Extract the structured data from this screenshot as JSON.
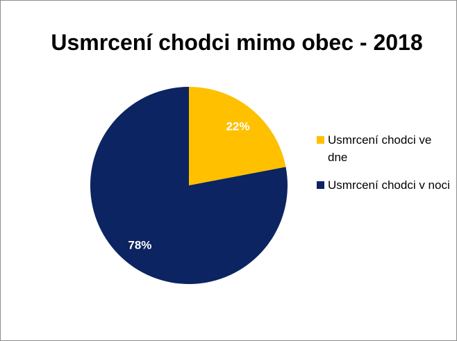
{
  "chart_data": {
    "type": "pie",
    "title": "Usmrcení chodci mimo obec - 2018",
    "slices": [
      {
        "label": "Usmrcení chodci ve dne",
        "value": 22,
        "value_label": "22%",
        "color": "#FFC000"
      },
      {
        "label": "Usmrcení chodci v noci",
        "value": 78,
        "value_label": "78%",
        "color": "#0C2461"
      }
    ],
    "legend_position": "right"
  }
}
